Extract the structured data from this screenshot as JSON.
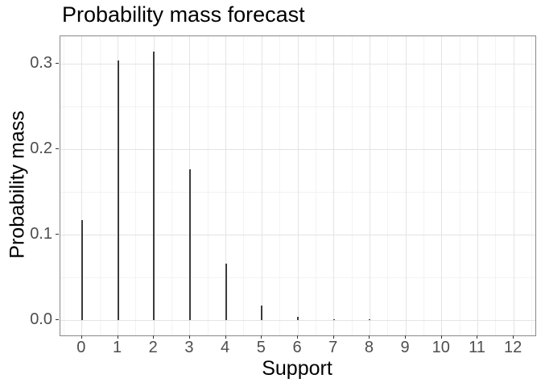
{
  "chart_data": {
    "type": "bar",
    "subtype": "pmf_vertical_segments",
    "title": "Probability mass forecast",
    "xlabel": "Support",
    "ylabel": "Probability mass",
    "categories": [
      0,
      1,
      2,
      3,
      4,
      5,
      6,
      7,
      8,
      9,
      10,
      11,
      12
    ],
    "values": [
      0.117,
      0.304,
      0.315,
      0.177,
      0.066,
      0.017,
      0.0045,
      0.0015,
      0.001,
      0.0003,
      0.0001,
      0,
      0
    ],
    "x_tick_labels": [
      "0",
      "1",
      "2",
      "3",
      "4",
      "5",
      "6",
      "7",
      "8",
      "9",
      "10",
      "11",
      "12"
    ],
    "y_ticks": [
      0,
      0.1,
      0.2,
      0.3
    ],
    "y_tick_labels": [
      "0.0",
      "0.1",
      "0.2",
      "0.3"
    ],
    "y_minor_gridlines": [
      0.05,
      0.15,
      0.25
    ],
    "x_minor_step": 0.5,
    "xlim": [
      -0.6,
      12.6
    ],
    "ylim": [
      -0.0175,
      0.3325
    ],
    "grid": "major+minor",
    "legend": "none",
    "colors": {
      "bar": "#3b3b3b",
      "grid_major": "#e4e4e4",
      "grid_minor": "#f3f3f3",
      "panel_border": "#898989",
      "tick_mark": "#333333",
      "tick_label": "#4d4d4d",
      "title": "#000000"
    }
  }
}
